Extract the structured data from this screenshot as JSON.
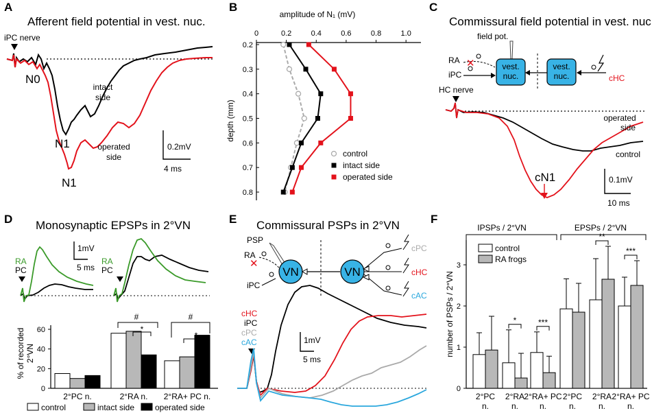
{
  "panels": {
    "A": {
      "letter": "A",
      "title": "Afferent field potential in vest. nuc.",
      "stim": "iPC nerve",
      "n0": "N0",
      "n1_intact": "N1",
      "n1_operated": "N1",
      "intact_label": [
        "intact",
        "side"
      ],
      "operated_label": [
        "operated",
        "side"
      ],
      "scale_v": "0.2mV",
      "scale_t": "4 ms"
    },
    "B": {
      "letter": "B",
      "xtitle": "amplitude of N₁ (mV)",
      "ytitle": "depth (mm)"
    },
    "C": {
      "letter": "C",
      "title": "Commissural field potential in vest. nuc.",
      "field_pot": "field pot.",
      "ra": "RA",
      "ipc": "iPC",
      "chc": "cHC",
      "box1": [
        "vest.",
        "nuc."
      ],
      "box2": [
        "vest.",
        "nuc."
      ],
      "stim": "HC  nerve",
      "operated_label": [
        "operated",
        "side"
      ],
      "control_label": "control",
      "cn1": "cN1",
      "scale_v": "0.1mV",
      "scale_t": "10 ms"
    },
    "D": {
      "letter": "D",
      "title": "Monosynaptic EPSPs in 2°VN",
      "ra": "RA",
      "pc": "PC",
      "scale_v": "1mV",
      "scale_t": "5 ms",
      "ylabel": [
        "% of recorded",
        "2°VN"
      ],
      "sig1": "#",
      "sig2": "*",
      "sig3": "#",
      "sig4": "*"
    },
    "E": {
      "letter": "E",
      "title": "Commissural PSPs in 2°VN",
      "psp": "PSP",
      "ra": "RA",
      "ipc": "iPC",
      "vn1": "VN",
      "vn2": "VN",
      "cpc": "cPC",
      "chc": "cHC",
      "cac": "cAC",
      "legend": [
        "cHC",
        "iPC",
        "cPC",
        "cAC"
      ],
      "scale_v": "1mV",
      "scale_t": "5 ms"
    },
    "F": {
      "letter": "F",
      "group1": "IPSPs / 2°VN",
      "group2": "EPSPs / 2°VN",
      "ylabel": "number of PSPs / 2°VN",
      "sigs": [
        "*",
        "***",
        "**",
        "***"
      ]
    }
  },
  "colors": {
    "red": "#e3121b",
    "green": "#3a9a29",
    "blue": "#2aa7dd",
    "gray": "#aaaaaa",
    "box": "#38b3e6",
    "bar_gray": "#b8b8b8"
  },
  "chart_data": [
    {
      "type": "line",
      "panel": "B",
      "title": "",
      "xlabel": "amplitude of N₁ (mV)",
      "ylabel": "depth (mm)",
      "xlim": [
        0,
        1.1
      ],
      "ylim": [
        0.8,
        0.2
      ],
      "xticks": [
        "0",
        "0.2",
        "0.4",
        "0.6",
        "0.8",
        "1.0"
      ],
      "yticks": [
        "0.2",
        "0.3",
        "0.4",
        "0.5",
        "0.6",
        "0.7",
        "0.8"
      ],
      "y": [
        0.2,
        0.3,
        0.4,
        0.5,
        0.6,
        0.7,
        0.8
      ],
      "series": [
        {
          "name": "control",
          "values": [
            0.18,
            0.22,
            0.28,
            0.32,
            0.27,
            0.23,
            0.19
          ]
        },
        {
          "name": "intact side",
          "values": [
            0.22,
            0.33,
            0.43,
            0.41,
            0.3,
            0.24,
            0.18
          ]
        },
        {
          "name": "operated side",
          "values": [
            0.35,
            0.52,
            0.63,
            0.63,
            0.43,
            0.3,
            0.24
          ]
        }
      ]
    },
    {
      "type": "bar",
      "panel": "D",
      "title": "",
      "ylabel": "% of recorded 2°VN",
      "ylim": [
        0,
        60
      ],
      "yticks": [
        "0",
        "20",
        "40",
        "60"
      ],
      "categories": [
        "2°PC n.",
        "2°RA n.",
        "2°RA+ PC n."
      ],
      "series": [
        {
          "name": "control",
          "values": [
            15,
            56,
            28
          ]
        },
        {
          "name": "intact side",
          "values": [
            10,
            58,
            32
          ]
        },
        {
          "name": "operated side",
          "values": [
            13,
            34,
            54
          ]
        }
      ]
    },
    {
      "type": "bar",
      "panel": "F",
      "title": "",
      "ylabel": "number of PSPs / 2°VN",
      "ylim": [
        0,
        3.6
      ],
      "yticks": [
        "0",
        "1",
        "2",
        "3"
      ],
      "categories": [
        "2°PC n.",
        "2°RA n.",
        "2°RA+ PC n.",
        "2°PC n.",
        "2°RA n.",
        "2°RA+ PC n."
      ],
      "series": [
        {
          "name": "control",
          "values": [
            0.82,
            0.62,
            0.87,
            1.93,
            2.15,
            2.0
          ],
          "errors": [
            0.53,
            0.8,
            0.5,
            0.73,
            1.0,
            0.7
          ]
        },
        {
          "name": "RA frogs",
          "values": [
            0.93,
            0.25,
            0.38,
            1.85,
            2.65,
            2.5
          ],
          "errors": [
            0.82,
            0.6,
            0.4,
            0.7,
            0.8,
            0.6
          ]
        }
      ]
    }
  ]
}
